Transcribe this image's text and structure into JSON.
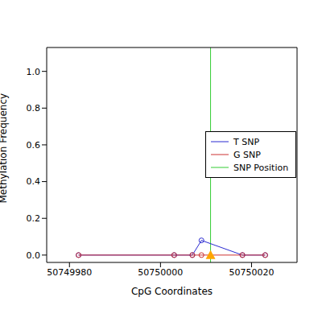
{
  "chart_data": {
    "type": "line",
    "x_label": "CpG Coordinates",
    "y_label": "Methylation Frequency",
    "x": [
      50749982,
      50750003,
      50750007,
      50750009,
      50750018,
      50750023
    ],
    "series": [
      {
        "name": "T SNP",
        "color": "#2b2bd1",
        "marker": "circle",
        "values": [
          0,
          0,
          0,
          0.08,
          0,
          0
        ]
      },
      {
        "name": "G SNP",
        "color": "#cc3333",
        "marker": "circle",
        "values": [
          0,
          0,
          0,
          0,
          0,
          0
        ]
      }
    ],
    "snp_position": {
      "name": "SNP Position",
      "x": 50750011,
      "y": 0,
      "color": "#33cc33",
      "marker_color": "#ffa500"
    },
    "xlim": [
      50749975,
      50750030
    ],
    "xticks": [
      50749980,
      50750000,
      50750020
    ],
    "ylim": [
      -0.04,
      1.13
    ],
    "yticks": [
      {
        "value": 0,
        "label": "0.0"
      },
      {
        "value": 0.2,
        "label": "0.2"
      },
      {
        "value": 0.4,
        "label": "0.4"
      },
      {
        "value": 0.6,
        "label": "0.6"
      },
      {
        "value": 0.8,
        "label": "0.8"
      },
      {
        "value": 1,
        "label": "1.0"
      }
    ],
    "legend": "right"
  }
}
